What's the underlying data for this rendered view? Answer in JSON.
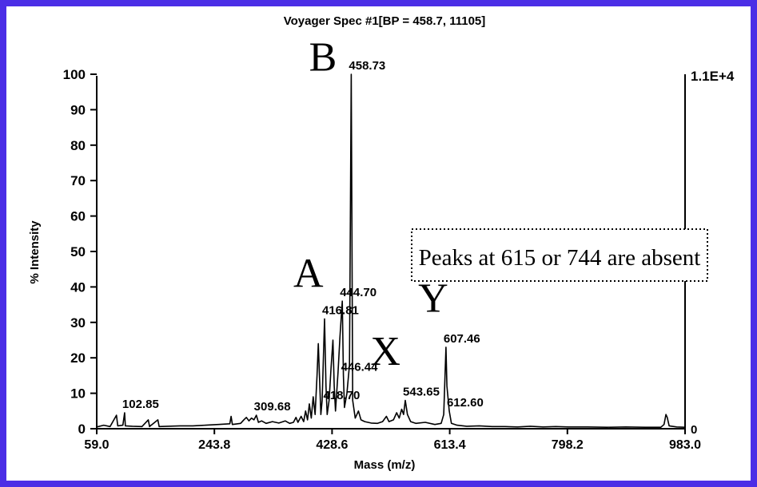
{
  "chart_data": {
    "type": "line",
    "title": "Voyager Spec #1[BP = 458.7, 11105]",
    "xlabel": "Mass (m/z)",
    "ylabel": "% Intensity",
    "xlim": [
      59.0,
      983.0
    ],
    "ylim": [
      0,
      100
    ],
    "x_ticks": [
      "59.0",
      "243.8",
      "428.6",
      "613.4",
      "798.2",
      "983.0"
    ],
    "y_ticks": [
      "0",
      "10",
      "20",
      "30",
      "40",
      "50",
      "60",
      "70",
      "80",
      "90",
      "100"
    ],
    "right_axis": {
      "top_label": "1.1E+4",
      "bottom_label": "0"
    },
    "grid": false,
    "series": [
      {
        "points": [
          [
            59,
            0.5
          ],
          [
            70,
            1.0
          ],
          [
            80,
            0.6
          ],
          [
            90,
            3.8
          ],
          [
            92,
            0.8
          ],
          [
            100,
            1.0
          ],
          [
            102.85,
            4.5
          ],
          [
            104,
            0.8
          ],
          [
            115,
            0.7
          ],
          [
            130,
            0.6
          ],
          [
            140,
            2.5
          ],
          [
            142,
            0.6
          ],
          [
            155,
            2.5
          ],
          [
            157,
            0.6
          ],
          [
            170,
            0.7
          ],
          [
            190,
            0.8
          ],
          [
            210,
            0.8
          ],
          [
            230,
            1.0
          ],
          [
            250,
            1.2
          ],
          [
            268,
            1.4
          ],
          [
            270,
            3.5
          ],
          [
            272,
            1.2
          ],
          [
            285,
            1.5
          ],
          [
            290,
            2.5
          ],
          [
            294,
            3.2
          ],
          [
            298,
            2.2
          ],
          [
            302,
            3.0
          ],
          [
            306,
            2.5
          ],
          [
            309.68,
            3.8
          ],
          [
            313,
            1.8
          ],
          [
            318,
            2.2
          ],
          [
            325,
            1.5
          ],
          [
            335,
            2.0
          ],
          [
            345,
            1.6
          ],
          [
            355,
            2.2
          ],
          [
            362,
            1.5
          ],
          [
            368,
            1.8
          ],
          [
            372,
            3.2
          ],
          [
            375,
            1.8
          ],
          [
            380,
            3.5
          ],
          [
            384,
            2.0
          ],
          [
            387,
            5.0
          ],
          [
            390,
            2.5
          ],
          [
            393,
            7.0
          ],
          [
            396,
            3.0
          ],
          [
            399,
            9.0
          ],
          [
            402,
            4.0
          ],
          [
            405,
            15.0
          ],
          [
            407,
            24.0
          ],
          [
            409,
            14.0
          ],
          [
            411,
            4.0
          ],
          [
            413,
            8.0
          ],
          [
            416.81,
            31.0
          ],
          [
            419,
            12.0
          ],
          [
            421,
            4.0
          ],
          [
            424,
            8.0
          ],
          [
            427,
            17.0
          ],
          [
            430,
            25.0
          ],
          [
            432,
            12.0
          ],
          [
            434,
            5.0
          ],
          [
            438,
            16.0
          ],
          [
            441,
            26.0
          ],
          [
            444.7,
            36.0
          ],
          [
            446.44,
            15.0
          ],
          [
            448,
            6.0
          ],
          [
            452,
            10.0
          ],
          [
            456,
            18.0
          ],
          [
            458.73,
            100.0
          ],
          [
            461,
            8.0
          ],
          [
            465,
            3.0
          ],
          [
            470,
            5.0
          ],
          [
            474,
            2.5
          ],
          [
            480,
            2.0
          ],
          [
            490,
            1.6
          ],
          [
            500,
            1.5
          ],
          [
            508,
            2.0
          ],
          [
            514,
            3.5
          ],
          [
            518,
            2.0
          ],
          [
            525,
            2.5
          ],
          [
            530,
            4.5
          ],
          [
            534,
            3.0
          ],
          [
            538,
            5.5
          ],
          [
            541,
            4.0
          ],
          [
            543.65,
            8.0
          ],
          [
            547,
            4.0
          ],
          [
            552,
            2.0
          ],
          [
            560,
            1.5
          ],
          [
            575,
            1.8
          ],
          [
            590,
            1.2
          ],
          [
            600,
            1.5
          ],
          [
            604,
            4.0
          ],
          [
            607.46,
            23.0
          ],
          [
            609,
            12.0
          ],
          [
            612.6,
            5.0
          ],
          [
            616,
            1.5
          ],
          [
            625,
            1.0
          ],
          [
            640,
            0.7
          ],
          [
            660,
            0.8
          ],
          [
            680,
            0.6
          ],
          [
            700,
            0.6
          ],
          [
            720,
            0.5
          ],
          [
            740,
            0.7
          ],
          [
            760,
            0.5
          ],
          [
            780,
            0.6
          ],
          [
            800,
            0.5
          ],
          [
            830,
            0.5
          ],
          [
            860,
            0.4
          ],
          [
            890,
            0.5
          ],
          [
            920,
            0.4
          ],
          [
            945,
            0.4
          ],
          [
            950,
            1.2
          ],
          [
            953,
            4.0
          ],
          [
            955,
            3.2
          ],
          [
            958,
            0.8
          ],
          [
            970,
            0.5
          ],
          [
            983,
            0.4
          ]
        ]
      }
    ],
    "peak_labels": [
      {
        "x": 102.85,
        "y": 4.5,
        "text": "102.85"
      },
      {
        "x": 309.68,
        "y": 3.8,
        "text": "309.68"
      },
      {
        "x": 416.81,
        "y": 31.0,
        "text": "416.81"
      },
      {
        "x": 418.7,
        "y": 7.0,
        "text": "418.70"
      },
      {
        "x": 444.7,
        "y": 36.0,
        "text": "444.70"
      },
      {
        "x": 446.44,
        "y": 15.0,
        "text": "446.44"
      },
      {
        "x": 458.73,
        "y": 100.0,
        "text": "458.73"
      },
      {
        "x": 543.65,
        "y": 8.0,
        "text": "543.65"
      },
      {
        "x": 607.46,
        "y": 23.0,
        "text": "607.46"
      },
      {
        "x": 612.6,
        "y": 5.0,
        "text": "612.60"
      }
    ],
    "peak_letters": [
      {
        "text": "A",
        "x": 415,
        "y": 40
      },
      {
        "text": "B",
        "x": 436,
        "y": 101
      },
      {
        "text": "X",
        "x": 536,
        "y": 18
      },
      {
        "text": "Y",
        "x": 611,
        "y": 33
      }
    ],
    "annotations": [
      {
        "text": "Peaks at 615 or  744 are absent",
        "x": 756,
        "y": 50
      }
    ]
  }
}
